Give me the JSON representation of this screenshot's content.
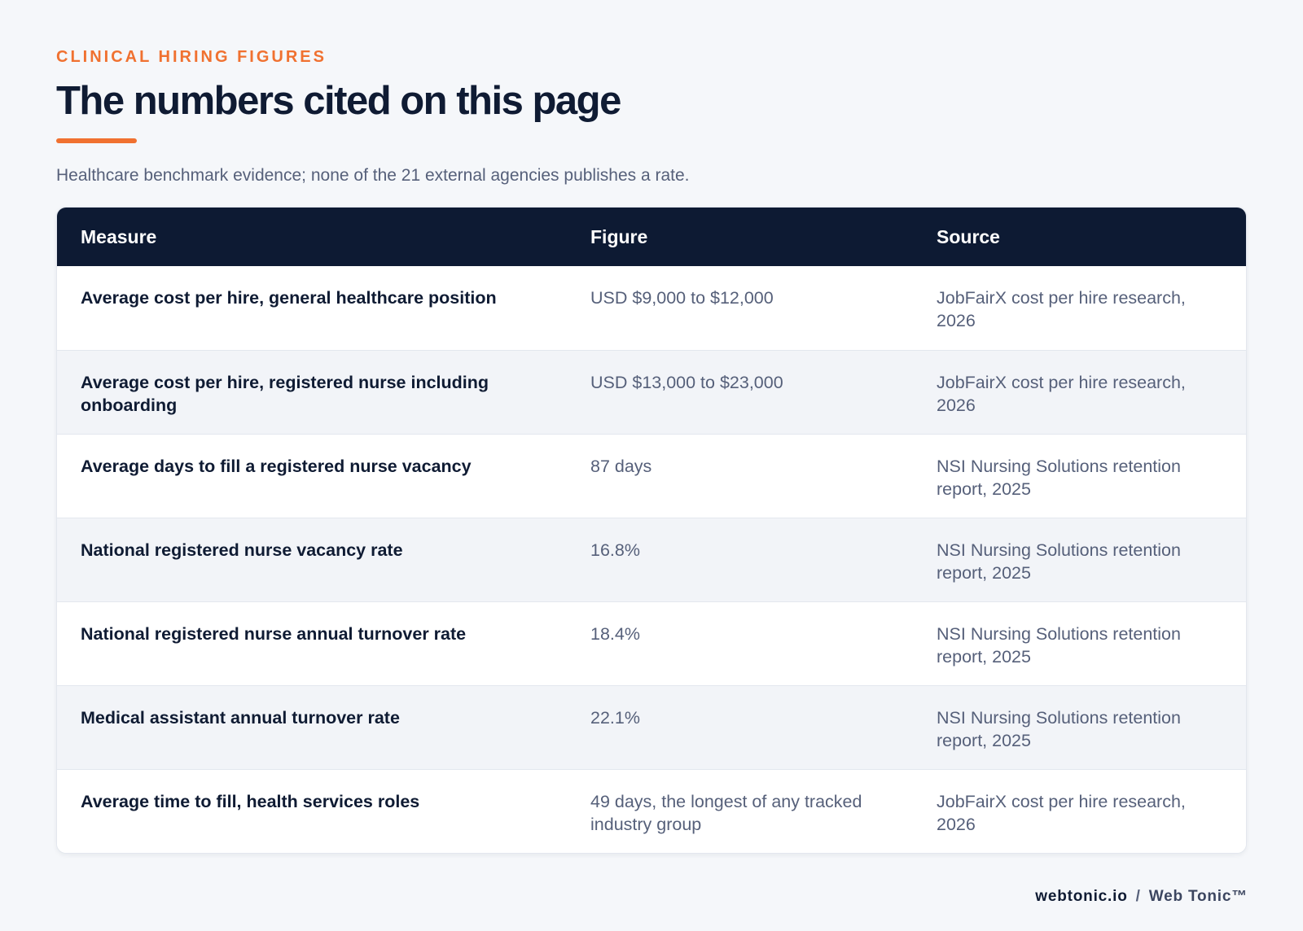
{
  "header": {
    "eyebrow": "CLINICAL HIRING FIGURES",
    "title": "The numbers cited on this page",
    "subtitle": "Healthcare benchmark evidence; none of the 21 external agencies publishes a rate."
  },
  "table": {
    "columns": [
      "Measure",
      "Figure",
      "Source"
    ],
    "rows": [
      {
        "measure": "Average cost per hire, general healthcare position",
        "figure": "USD $9,000 to $12,000",
        "source": "JobFairX cost per hire research, 2026"
      },
      {
        "measure": "Average cost per hire, registered nurse including onboarding",
        "figure": "USD $13,000 to $23,000",
        "source": "JobFairX cost per hire research, 2026"
      },
      {
        "measure": "Average days to fill a registered nurse vacancy",
        "figure": "87 days",
        "source": "NSI Nursing Solutions retention report, 2025"
      },
      {
        "measure": "National registered nurse vacancy rate",
        "figure": "16.8%",
        "source": "NSI Nursing Solutions retention report, 2025"
      },
      {
        "measure": "National registered nurse annual turnover rate",
        "figure": "18.4%",
        "source": "NSI Nursing Solutions retention report, 2025"
      },
      {
        "measure": "Medical assistant annual turnover rate",
        "figure": "22.1%",
        "source": "NSI Nursing Solutions retention report, 2025"
      },
      {
        "measure": "Average time to fill, health services roles",
        "figure": "49 days, the longest of any tracked industry group",
        "source": "JobFairX cost per hire research, 2026"
      }
    ]
  },
  "footer": {
    "site": "webtonic.io",
    "separator": "/",
    "brand": "Web Tonic™"
  },
  "colors": {
    "accent": "#f07130",
    "header_bg": "#0d1a33",
    "text_dark": "#0f1b33",
    "text_muted": "#56607a",
    "page_bg": "#f5f7fa"
  }
}
